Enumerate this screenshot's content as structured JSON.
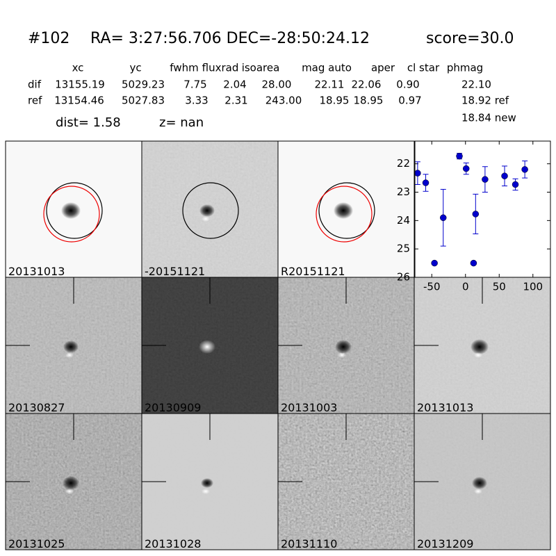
{
  "header": {
    "id": "#102",
    "coords": "RA= 3:27:56.706 DEC=-28:50:24.12",
    "score": "score=30.0"
  },
  "table": {
    "columns": [
      "xc",
      "yc",
      "fwhm",
      "fluxrad",
      "isoarea",
      "mag auto",
      "aper",
      "cl star",
      "phmag"
    ],
    "rows": [
      [
        "dif",
        "13155.19",
        "5029.23",
        "7.75",
        "2.04",
        "28.00",
        "22.11",
        "22.06",
        "0.90",
        "22.10"
      ],
      [
        "ref",
        "13154.46",
        "5027.83",
        "3.33",
        "2.31",
        "243.00",
        "18.95",
        "18.95",
        "0.97",
        "18.92 ref"
      ]
    ],
    "extra": "18.84 new",
    "dist": "dist=  1.58",
    "z": "z=   nan"
  },
  "stamps": [
    {
      "label": "20131013",
      "color": "#000000"
    },
    {
      "label": "-20151121",
      "color": "#000000"
    },
    {
      "label": "R20151121",
      "color": "#000000"
    },
    {
      "label": "20130827",
      "color": "#000000"
    },
    {
      "label": "20130909",
      "color": "#000000"
    },
    {
      "label": "20131003",
      "color": "#000000"
    },
    {
      "label": "20131013",
      "color": "#ff0000"
    },
    {
      "label": "20131025",
      "color": "#000000"
    },
    {
      "label": "20131028",
      "color": "#000000"
    },
    {
      "label": "20131110",
      "color": "#000000"
    },
    {
      "label": "20131209",
      "color": "#000000"
    }
  ],
  "chart_data": {
    "type": "scatter",
    "color": "#0000cc",
    "x": [
      -71,
      -59,
      -46,
      -33,
      -9,
      1,
      15,
      12,
      29,
      58,
      74,
      88
    ],
    "y": [
      22.33,
      22.67,
      25.5,
      23.9,
      21.73,
      22.17,
      23.77,
      25.5,
      22.55,
      22.43,
      22.73,
      22.2
    ],
    "err": [
      0.4,
      0.3,
      0.05,
      1.0,
      0.1,
      0.2,
      0.7,
      0.05,
      0.45,
      0.35,
      0.2,
      0.3
    ],
    "xlim": [
      -75,
      126
    ],
    "ylim": [
      26,
      21.2
    ],
    "xticks": [
      -50,
      0,
      50,
      100
    ],
    "yticks": [
      22,
      23,
      24,
      25,
      26
    ]
  }
}
